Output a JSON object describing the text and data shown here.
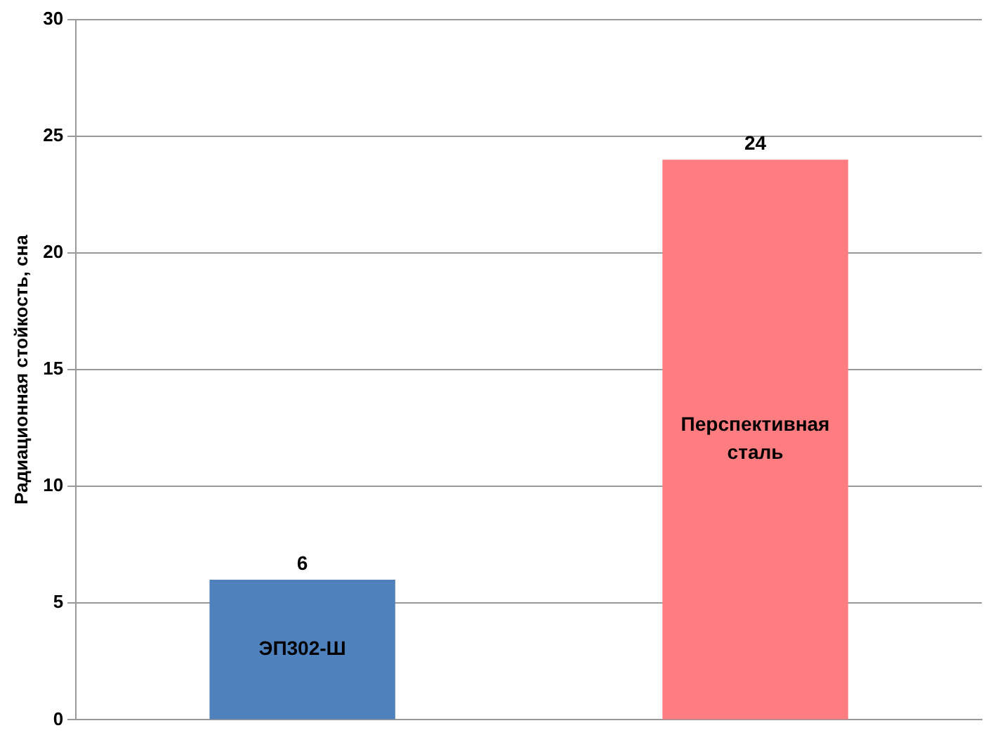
{
  "chart_data": {
    "type": "bar",
    "ylabel": "Радиационная стойкость, сна",
    "categories": [
      "ЭП302-Ш",
      "Перспективная сталь"
    ],
    "values": [
      6,
      24
    ],
    "colors": [
      "#4f81bd",
      "#ff7c80"
    ],
    "ylim": [
      0,
      30
    ],
    "yticks": [
      0,
      5,
      10,
      15,
      20,
      25,
      30
    ],
    "grid": "y",
    "data_labels": true,
    "legend": false
  }
}
